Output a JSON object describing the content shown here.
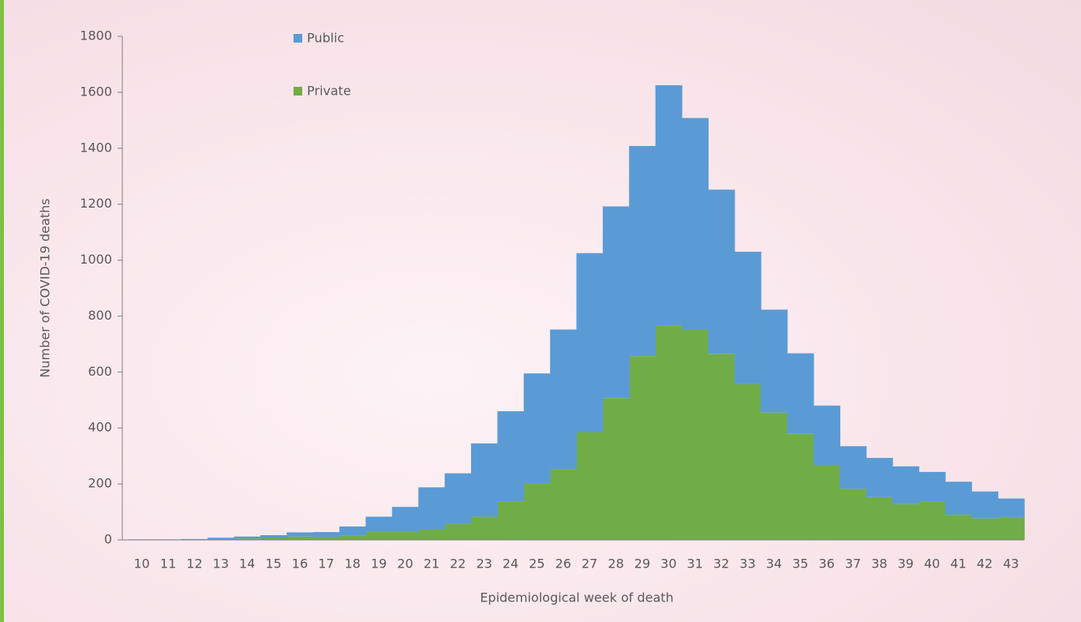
{
  "chart_data": {
    "type": "stacked-histogram",
    "x_label": "Epidemiological week of death",
    "y_label": "Number of COVID-19 deaths",
    "categories": [
      "10",
      "11",
      "12",
      "13",
      "14",
      "15",
      "16",
      "17",
      "18",
      "19",
      "20",
      "21",
      "22",
      "23",
      "24",
      "25",
      "26",
      "27",
      "28",
      "29",
      "30",
      "31",
      "32",
      "33",
      "34",
      "35",
      "36",
      "37",
      "38",
      "39",
      "40",
      "41",
      "42",
      "43"
    ],
    "series": [
      {
        "name": "Private",
        "color": "#70ad47",
        "values": [
          1,
          1,
          1,
          3,
          5,
          7,
          12,
          10,
          15,
          28,
          28,
          38,
          58,
          83,
          138,
          203,
          253,
          385,
          507,
          657,
          767,
          752,
          665,
          557,
          455,
          380,
          268,
          183,
          153,
          128,
          138,
          90,
          77,
          82
        ]
      },
      {
        "name": "Public",
        "color": "#5b9bd5",
        "values": [
          1,
          1,
          2,
          5,
          7,
          10,
          15,
          18,
          33,
          55,
          90,
          150,
          180,
          262,
          322,
          392,
          499,
          640,
          685,
          751,
          858,
          756,
          587,
          473,
          368,
          287,
          212,
          152,
          140,
          135,
          105,
          118,
          96,
          66
        ]
      }
    ],
    "ylim": [
      0,
      1800
    ],
    "yticks": [
      0,
      200,
      400,
      600,
      800,
      1000,
      1200,
      1400,
      1600,
      1800
    ]
  }
}
